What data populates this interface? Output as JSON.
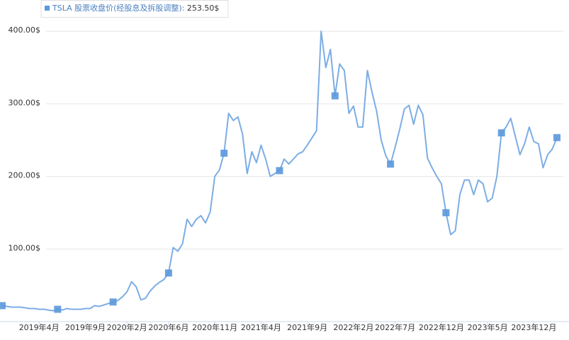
{
  "chart_data": {
    "type": "line",
    "categories": [
      null,
      null,
      null,
      null,
      null,
      null,
      null,
      null,
      "2019年4月",
      null,
      null,
      null,
      null,
      null,
      null,
      null,
      null,
      null,
      "2019年9月",
      null,
      null,
      null,
      null,
      null,
      null,
      null,
      null,
      "2020年2月",
      null,
      null,
      null,
      null,
      null,
      null,
      null,
      null,
      "2020年6月",
      null,
      null,
      null,
      null,
      null,
      null,
      null,
      null,
      null,
      "2020年11月",
      null,
      null,
      null,
      null,
      null,
      null,
      null,
      null,
      null,
      "2021年4月",
      null,
      null,
      null,
      null,
      null,
      null,
      null,
      null,
      null,
      "2021年9月",
      null,
      null,
      null,
      null,
      null,
      null,
      null,
      null,
      null,
      "2022年2月",
      null,
      null,
      null,
      null,
      null,
      null,
      null,
      null,
      "2022年7月",
      null,
      null,
      null,
      null,
      null,
      null,
      null,
      null,
      null,
      "2022年12月",
      null,
      null,
      null,
      null,
      null,
      null,
      null,
      null,
      null,
      "2023年5月",
      null,
      null,
      null,
      null,
      null,
      null,
      null,
      null,
      null,
      "2023年12月",
      null,
      null,
      null,
      null,
      null
    ],
    "series": [
      {
        "name": "TSLA 股票收盘价(经股息及拆股调整):",
        "color": "#7cade4",
        "marker_color": "#5b98dc",
        "values": [
          22,
          21,
          20,
          20,
          20,
          19,
          18,
          18,
          17,
          17,
          16,
          15,
          17,
          16,
          18,
          17,
          17,
          17,
          18,
          18,
          22,
          21,
          23,
          25,
          27,
          29,
          34,
          41,
          55,
          48,
          30,
          32,
          42,
          49,
          54,
          58,
          67,
          102,
          97,
          107,
          141,
          131,
          141,
          146,
          136,
          151,
          200,
          209,
          232,
          287,
          277,
          282,
          258,
          204,
          234,
          219,
          243,
          224,
          200,
          204,
          208,
          224,
          217,
          224,
          231,
          234,
          243,
          253,
          263,
          400,
          350,
          375,
          311,
          355,
          346,
          287,
          297,
          268,
          268,
          346,
          316,
          290,
          250,
          228,
          217,
          240,
          265,
          293,
          298,
          272,
          298,
          285,
          225,
          212,
          200,
          190,
          150,
          120,
          125,
          175,
          195,
          195,
          175,
          195,
          190,
          165,
          170,
          200,
          260,
          268,
          280,
          255,
          230,
          245,
          268,
          248,
          245,
          212,
          230,
          238,
          253.5
        ],
        "value_labels": [
          null,
          null,
          null,
          null,
          null,
          null,
          null,
          null,
          null,
          null,
          null,
          null,
          null,
          null,
          null,
          null,
          null,
          null,
          null,
          null,
          null,
          null,
          null,
          null,
          null,
          null,
          null,
          null,
          null,
          null,
          null,
          null,
          null,
          null,
          null,
          null,
          null,
          null,
          null,
          null,
          null,
          null,
          null,
          null,
          null,
          null,
          null,
          null,
          null,
          null,
          null,
          null,
          null,
          null,
          null,
          null,
          null,
          null,
          null,
          null,
          null,
          null,
          null,
          null,
          null,
          null,
          null,
          null,
          null,
          null,
          null,
          null,
          null,
          null,
          null,
          null,
          null,
          null,
          null,
          null,
          null,
          null,
          null,
          null,
          null,
          null,
          null,
          null,
          null,
          null,
          null,
          null,
          null,
          null,
          null,
          null,
          null,
          null,
          null,
          null,
          null,
          null,
          null,
          null,
          null,
          null,
          null,
          null,
          null,
          null,
          null,
          null,
          null,
          null,
          null,
          null,
          null,
          null,
          null,
          null,
          "253.50$"
        ]
      }
    ],
    "ylim": [
      0,
      430
    ],
    "yticks": [
      {
        "value": 100,
        "label": "100.00$"
      },
      {
        "value": 200,
        "label": "200.00$"
      },
      {
        "value": 300,
        "label": "300.00$"
      },
      {
        "value": 400,
        "label": "400.00$"
      }
    ],
    "grid": true
  }
}
